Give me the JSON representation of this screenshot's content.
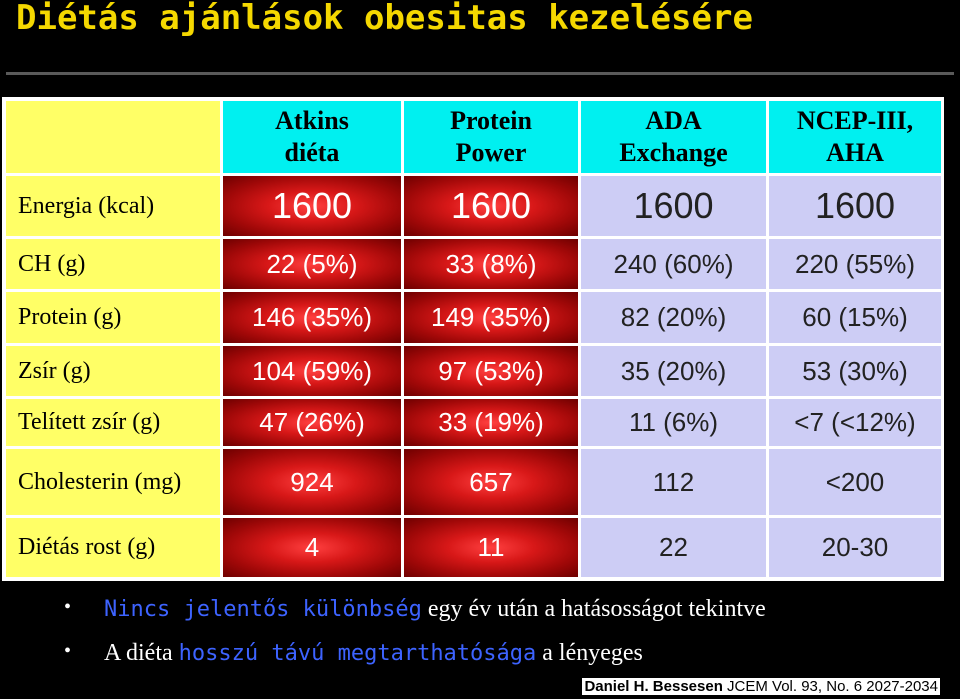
{
  "title": "Diétás ajánlások obesitas kezelésére",
  "table": {
    "headers": [
      [
        "Atkins",
        "diéta"
      ],
      [
        "Protein",
        "Power"
      ],
      [
        "ADA",
        "Exchange"
      ],
      [
        "NCEP-III,",
        "AHA"
      ]
    ],
    "rows": [
      {
        "label": "Energia (kcal)",
        "cells": [
          "1600",
          "1600",
          "1600",
          "1600"
        ]
      },
      {
        "label": "CH (g)",
        "cells": [
          "22 (5%)",
          "33 (8%)",
          "240 (60%)",
          "220 (55%)"
        ]
      },
      {
        "label": "Protein (g)",
        "cells": [
          "146 (35%)",
          "149 (35%)",
          "82 (20%)",
          "60 (15%)"
        ]
      },
      {
        "label": "Zsír (g)",
        "cells": [
          "104 (59%)",
          "97 (53%)",
          "35 (20%)",
          "53 (30%)"
        ]
      },
      {
        "label": "Telített zsír (g)",
        "cells": [
          "47 (26%)",
          "33 (19%)",
          "11 (6%)",
          "<7 (<12%)"
        ]
      },
      {
        "label": "Cholesterin (mg)",
        "cells": [
          "924",
          "657",
          "112",
          "<200"
        ]
      },
      {
        "label": "Diétás rost (g)",
        "cells": [
          "4",
          "11",
          "22",
          "20-30"
        ]
      }
    ]
  },
  "bullets": [
    {
      "highlight": "Nincs jelentős különbség",
      "rest": " egy év után a hatásosságot tekintve"
    },
    {
      "pre": "A diéta ",
      "highlight": "hosszú távú megtarthatósága",
      "rest": " a lényeges"
    }
  ],
  "citation": {
    "author": "Daniel H. Bessesen",
    "ref": " JCEM Vol. 93, No. 6 2027-2034"
  },
  "colors": {
    "title": "#f5d800",
    "header": "#00f0f0",
    "label_column": "#ffff66",
    "red_columns": "#c00000",
    "lavender_columns": "#cdcdf5",
    "highlight_text": "#3d63ff"
  }
}
